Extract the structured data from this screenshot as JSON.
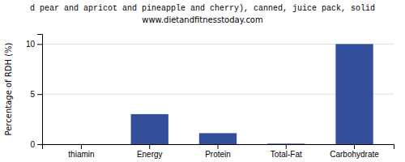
{
  "chart_data": {
    "type": "bar",
    "title": "d pear and apricot and pineapple and cherry), canned, juice pack, solid",
    "subtitle": "www.dietandfitnesstoday.com",
    "categories": [
      "thiamin",
      "Energy",
      "Protein",
      "Total-Fat",
      "Carbohydrate"
    ],
    "values": [
      0.0,
      3.0,
      1.1,
      0.05,
      10.0
    ],
    "color": "#314f9a",
    "ylabel": "Percentage of RDH (%)",
    "ylim": [
      0,
      11
    ],
    "yticks": [
      0,
      5,
      10
    ],
    "grid": true
  }
}
